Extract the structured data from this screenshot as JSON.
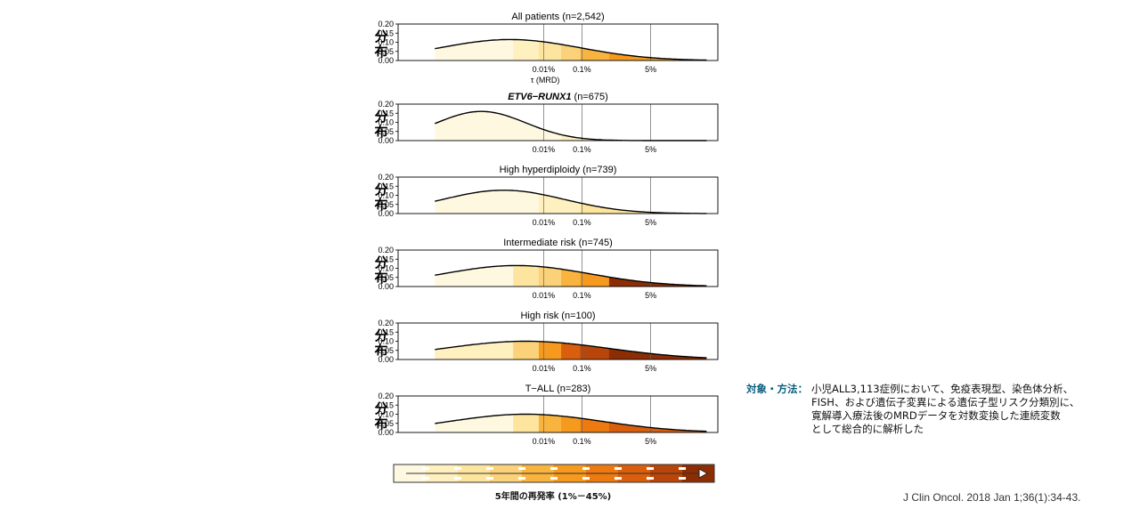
{
  "chart_data": {
    "type": "area",
    "ylabel": "分布",
    "yticks": [
      "0.20",
      "0.15",
      "0.10",
      "0.05",
      "0.00"
    ],
    "ylim": [
      0,
      0.2
    ],
    "x_tick_labels": [
      "0.01%",
      "0.1%",
      "5%"
    ],
    "first_panel_xlabel": "τ (MRD)",
    "panels": [
      {
        "title_pre": "",
        "title_em": "",
        "title_post": "All patients (n=2,542)",
        "peak": 0.115,
        "peak_pos": 0.35,
        "spread": 0.22,
        "band_levels": [
          0,
          1,
          2,
          3,
          4,
          5,
          5,
          5
        ]
      },
      {
        "title_pre": "",
        "title_em": "ETV6−RUNX1",
        "title_post": " (n=675)",
        "peak": 0.16,
        "peak_pos": 0.26,
        "spread": 0.14,
        "band_levels": [
          0,
          0,
          0,
          1,
          1,
          1,
          2,
          2
        ]
      },
      {
        "title_pre": "",
        "title_em": "",
        "title_post": "High hyperdiploidy (n=739)",
        "peak": 0.128,
        "peak_pos": 0.33,
        "spread": 0.19,
        "band_levels": [
          0,
          0,
          1,
          1,
          2,
          2,
          2,
          2
        ]
      },
      {
        "title_pre": "",
        "title_em": "",
        "title_post": "Intermediate risk (n=745)",
        "peak": 0.115,
        "peak_pos": 0.37,
        "spread": 0.23,
        "band_levels": [
          0,
          2,
          3,
          4,
          5,
          9,
          9,
          9
        ]
      },
      {
        "title_pre": "",
        "title_em": "",
        "title_post": "High risk (n=100)",
        "peak": 0.1,
        "peak_pos": 0.4,
        "spread": 0.26,
        "band_levels": [
          1,
          3,
          5,
          7,
          8,
          9,
          9,
          9
        ]
      },
      {
        "title_pre": "",
        "title_em": "",
        "title_post": "T−ALL (n=283)",
        "peak": 0.1,
        "peak_pos": 0.4,
        "spread": 0.24,
        "band_levels": [
          0,
          2,
          4,
          5,
          6,
          7,
          7,
          7
        ]
      }
    ],
    "colorscale": [
      "#fff8e1",
      "#fff0c0",
      "#fde5a0",
      "#fbd27a",
      "#f8b43f",
      "#f59a1f",
      "#ec7a10",
      "#d95f0e",
      "#b8460a",
      "#8c2d04"
    ],
    "legend_caption": "5年間の再発率 (1%－45%)"
  },
  "methods": {
    "label": "対象・方法：",
    "lines": [
      "小児ALL3,113症例において、免疫表現型、染色体分析、",
      "FISH、および遺伝子変異による遺伝子型リスク分類別に、",
      "寛解導入療法後のMRDデータを対数変換した連続変数",
      "として総合的に解析した"
    ]
  },
  "citation": "J Clin Oncol. 2018 Jan 1;36(1):34-43."
}
